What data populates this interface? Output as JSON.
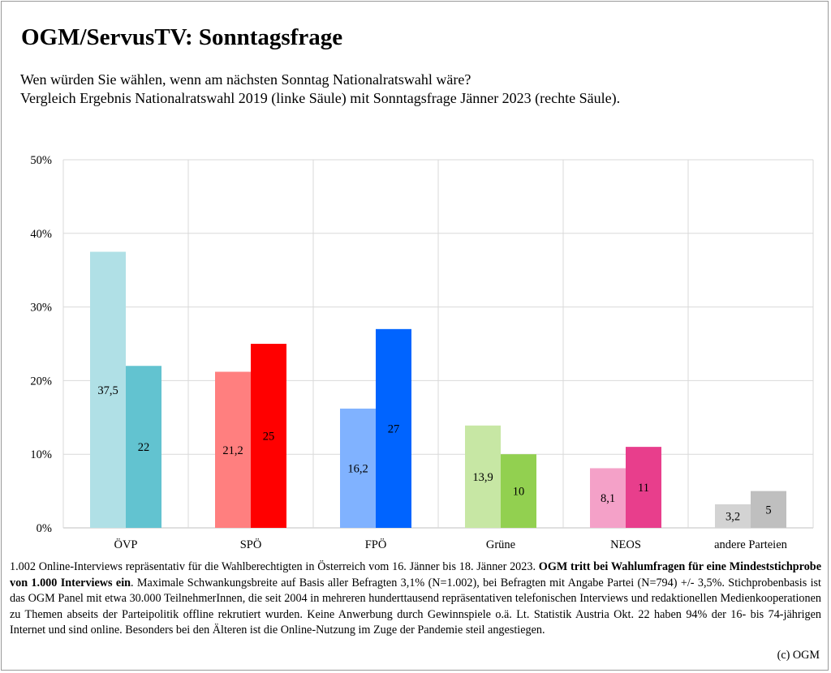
{
  "title": "OGM/ServusTV: Sonntagsfrage",
  "subtitle_line1": "Wen würden Sie wählen, wenn am nächsten Sonntag Nationalratswahl wäre?",
  "subtitle_line2": "Vergleich Ergebnis Nationalratswahl 2019 (linke Säule) mit Sonntagsfrage Jänner 2023 (rechte Säule).",
  "chart_data": {
    "type": "bar",
    "categories": [
      "ÖVP",
      "SPÖ",
      "FPÖ",
      "Grüne",
      "NEOS",
      "andere Parteien"
    ],
    "series": [
      {
        "values": [
          37.5,
          21.2,
          16.2,
          13.9,
          8.1,
          3.2
        ],
        "labels": [
          "37,5",
          "21,2",
          "16,2",
          "13,9",
          "8,1",
          "3,2"
        ]
      },
      {
        "values": [
          22,
          25,
          27,
          10,
          11,
          5
        ],
        "labels": [
          "22",
          "25",
          "27",
          "10",
          "11",
          "5"
        ]
      }
    ],
    "colors_left": [
      "#b0e0e6",
      "#ff7f7f",
      "#80b2ff",
      "#c7e7a4",
      "#f4a1c8",
      "#d3d3d3"
    ],
    "colors_right": [
      "#62c3d0",
      "#ff0000",
      "#0064ff",
      "#92d050",
      "#e83e8c",
      "#bfbfbf"
    ],
    "ylim": [
      0,
      50
    ],
    "yticks": [
      "0%",
      "10%",
      "20%",
      "30%",
      "40%",
      "50%"
    ],
    "grid": true,
    "xlabel": "",
    "ylabel": ""
  },
  "footer": {
    "part1": "1.002 Online-Interviews repräsentativ für die Wahlberechtigten in Österreich vom 16. Jänner bis 18. Jänner 2023. ",
    "bold": "OGM tritt bei Wahlumfragen für eine Mindeststichprobe von 1.000 Interviews ein",
    "part2": ". Maximale Schwankungsbreite auf Basis aller Befragten 3,1% (N=1.002), bei Befragten mit Angabe Partei (N=794) +/- 3,5%. Stichprobenbasis ist das OGM Panel mit etwa 30.000 TeilnehmerInnen, die seit 2004 in mehreren hunderttausend repräsentativen telefonischen Interviews und redaktionellen Medienkooperationen zu Themen abseits der Parteipolitik offline rekrutiert wurden. Keine Anwerbung durch Gewinnspiele o.ä. Lt. Statistik Austria Okt. 22 haben 94% der 16- bis 74-jährigen Internet und sind online. Besonders bei den Älteren ist die Online-Nutzung im Zuge der Pandemie steil angestiegen.",
    "copyright": "(c) OGM"
  }
}
